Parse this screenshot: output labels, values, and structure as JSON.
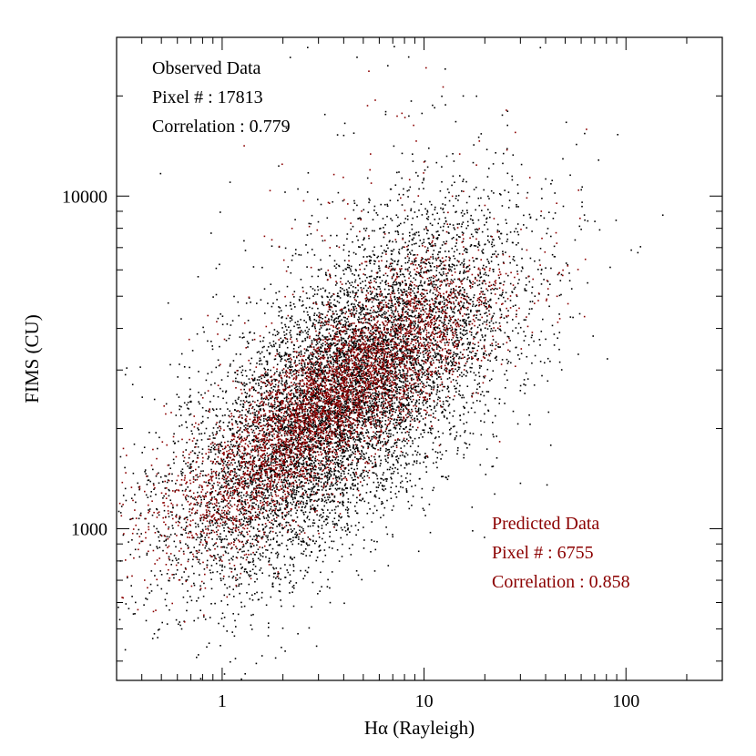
{
  "chart_data": {
    "type": "scatter",
    "xlabel": "Hα (Rayleigh)",
    "ylabel": "FIMS (CU)",
    "xscale": "log",
    "yscale": "log",
    "xlim": [
      0.3,
      300
    ],
    "ylim": [
      350,
      30000
    ],
    "x_ticks": [
      {
        "value": 1,
        "label": "1"
      },
      {
        "value": 10,
        "label": "10"
      },
      {
        "value": 100,
        "label": "100"
      }
    ],
    "y_ticks": [
      {
        "value": 1000,
        "label": "1000"
      },
      {
        "value": 10000,
        "label": "10000"
      }
    ],
    "grid": false,
    "series": [
      {
        "name": "Observed Data",
        "color": "#000000",
        "pixel_count": 17813,
        "trend": {
          "x": [
            0.5,
            1,
            3,
            10,
            30,
            100,
            250
          ],
          "y": [
            1100,
            1300,
            2200,
            3700,
            5200,
            7200,
            9000
          ]
        },
        "spread_dex": 0.2,
        "sample_points": [
          [
            1.2,
            1000
          ],
          [
            2,
            1600
          ],
          [
            3,
            2300
          ],
          [
            5,
            3000
          ],
          [
            10,
            3800
          ],
          [
            20,
            4800
          ],
          [
            50,
            6000
          ],
          [
            100,
            7500
          ]
        ]
      },
      {
        "name": "Predicted Data",
        "color": "#8b0000",
        "pixel_count": 6755,
        "trend": {
          "x": [
            0.5,
            1,
            3,
            10,
            30,
            100
          ],
          "y": [
            1100,
            1300,
            2300,
            3900,
            5400,
            7500
          ]
        },
        "spread_dex": 0.12,
        "sample_points": [
          [
            0.6,
            1200
          ],
          [
            1.5,
            1500
          ],
          [
            3,
            2300
          ],
          [
            7,
            3500
          ],
          [
            20,
            4800
          ],
          [
            60,
            7000
          ]
        ]
      }
    ],
    "annotations": [
      {
        "series": "Observed Data",
        "color": "#000000",
        "position": "top-left",
        "lines": [
          "Observed Data",
          "Pixel # : 17813",
          "Correlation : 0.779"
        ]
      },
      {
        "series": "Predicted Data",
        "color": "#8b0000",
        "position": "bottom-right",
        "lines": [
          "Predicted Data",
          "Pixel # :  6755",
          "Correlation : 0.858"
        ]
      }
    ]
  }
}
